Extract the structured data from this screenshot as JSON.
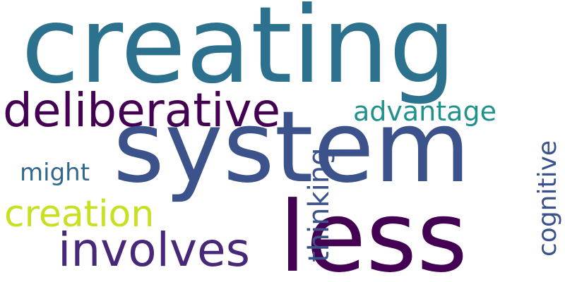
{
  "words": {
    "creating": {
      "text": "creating",
      "color": "#2C728E"
    },
    "system": {
      "text": "system",
      "color": "#3B528B"
    },
    "less": {
      "text": "less",
      "color": "#440154"
    },
    "deliberative": {
      "text": "deliberative",
      "color": "#440154"
    },
    "advantage": {
      "text": "advantage",
      "color": "#21918C"
    },
    "creation": {
      "text": "creation",
      "color": "#C8E020"
    },
    "involves": {
      "text": "involves",
      "color": "#482878"
    },
    "might": {
      "text": "might",
      "color": "#31688E"
    },
    "thinking": {
      "text": "thinking",
      "color": "#3B528B"
    },
    "cognitive": {
      "text": "cognitive",
      "color": "#3B528B"
    }
  }
}
